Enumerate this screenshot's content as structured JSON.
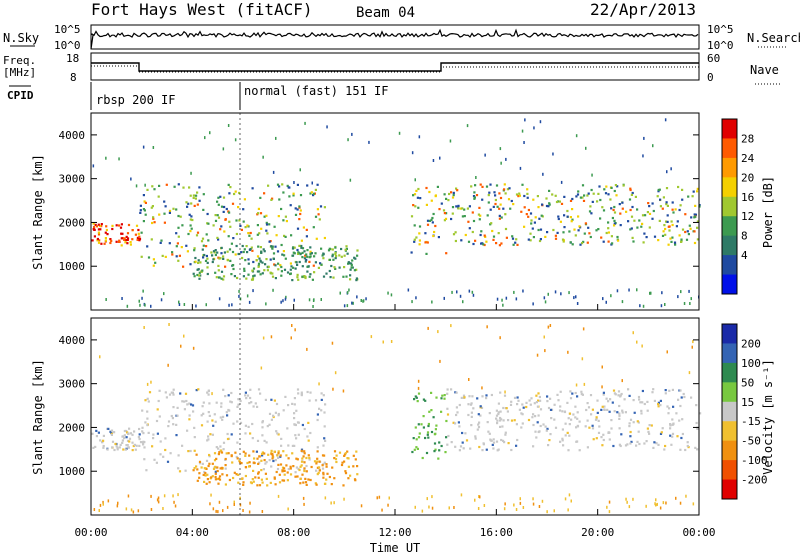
{
  "header": {
    "title": "Fort Hays West (fitACF)",
    "beam": "Beam 04",
    "date": "22/Apr/2013"
  },
  "top_panels": {
    "nsky_label": "N.Sky",
    "nsky_top_tick": "10^5",
    "nsky_bottom_tick": "10^0",
    "nsearch_label": "N.Search",
    "nsearch_top_tick": "10^5",
    "nsearch_bottom_tick": "10^0",
    "freq_label": "Freq.",
    "freq_unit": "[MHz]",
    "freq_ticks": [
      "18",
      "8"
    ],
    "nave_label": "Nave",
    "nave_ticks": [
      "60",
      "0"
    ],
    "cpid_label": "CPID",
    "cpid_modes": [
      "rbsp 200 IF",
      "normal (fast) 151 IF"
    ]
  },
  "chart_data": [
    {
      "type": "heatmap",
      "title": "Power",
      "ylabel": "Slant Range [km]",
      "xlabel": "Time UT",
      "x_ticks": [
        "00:00",
        "04:00",
        "08:00",
        "12:00",
        "16:00",
        "20:00",
        "00:00"
      ],
      "x_range_hours": [
        0,
        24
      ],
      "ylim": [
        0,
        4500
      ],
      "y_ticks": [
        1000,
        2000,
        3000,
        4000
      ],
      "colorbar": {
        "label": "Power [dB]",
        "ticks": [
          "28",
          "24",
          "20",
          "16",
          "12",
          "8",
          "4"
        ],
        "colors": [
          "#e00000",
          "#ff5a00",
          "#ff9a00",
          "#f4d000",
          "#a0c830",
          "#3c9a50",
          "#2e7a66",
          "#1f4aa0",
          "#0010e8"
        ]
      },
      "scatter_echoes": [
        {
          "t": [
            0.0,
            1.9
          ],
          "r": [
            1500,
            2000
          ],
          "value": "20-28 dB"
        },
        {
          "t": [
            1.9,
            9.2
          ],
          "r": [
            1000,
            2900
          ],
          "value": "8-24 dB"
        },
        {
          "t": [
            4.0,
            10.5
          ],
          "r": [
            700,
            1500
          ],
          "value": "4-20 dB"
        },
        {
          "t": [
            12.6,
            14.0
          ],
          "r": [
            1300,
            2900
          ],
          "value": "8-24 dB"
        },
        {
          "t": [
            14.0,
            24.0
          ],
          "r": [
            1500,
            2900
          ],
          "value": "8-28 dB"
        }
      ]
    },
    {
      "type": "heatmap",
      "title": "Velocity",
      "ylabel": "Slant Range [km]",
      "xlabel": "Time UT",
      "x_ticks": [
        "00:00",
        "04:00",
        "08:00",
        "12:00",
        "16:00",
        "20:00",
        "00:00"
      ],
      "x_range_hours": [
        0,
        24
      ],
      "ylim": [
        0,
        4500
      ],
      "y_ticks": [
        1000,
        2000,
        3000,
        4000
      ],
      "colorbar": {
        "label": "Velocity [m s⁻¹]",
        "ticks": [
          "200",
          "100",
          "50",
          "15",
          "-15",
          "-50",
          "-100",
          "-200"
        ],
        "colors": [
          "#1a2aa8",
          "#3464b4",
          "#2e8a50",
          "#78c840",
          "#c8c8c8",
          "#f0c030",
          "#f09010",
          "#f05000",
          "#e00000"
        ]
      },
      "scatter_echoes": [
        {
          "t": [
            0.0,
            1.9
          ],
          "r": [
            1500,
            2000
          ],
          "value": "-15 to 15"
        },
        {
          "t": [
            1.9,
            9.2
          ],
          "r": [
            1000,
            2900
          ],
          "value": "-15 to 15"
        },
        {
          "t": [
            4.0,
            10.5
          ],
          "r": [
            700,
            1500
          ],
          "value": "-100 to -50"
        },
        {
          "t": [
            12.6,
            14.0
          ],
          "r": [
            1300,
            2900
          ],
          "value": "15 to 100"
        },
        {
          "t": [
            14.0,
            24.0
          ],
          "r": [
            1500,
            2900
          ],
          "value": "-15 to 15"
        }
      ]
    }
  ]
}
